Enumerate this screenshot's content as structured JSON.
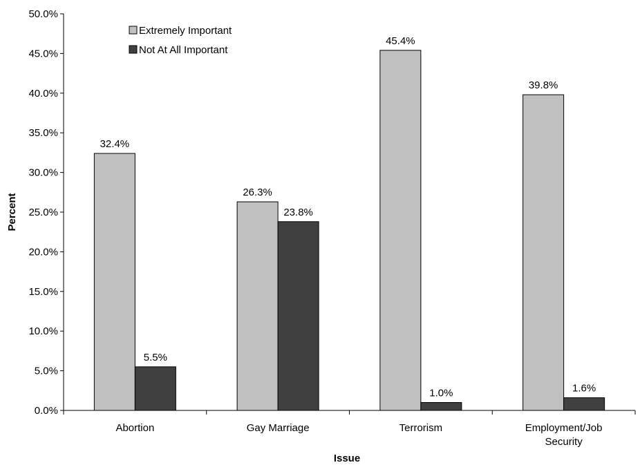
{
  "chart_data": {
    "type": "bar",
    "title": "",
    "xlabel": "Issue",
    "ylabel": "Percent",
    "categories": [
      "Abortion",
      "Gay Marriage",
      "Terrorism",
      "Employment/Job Security"
    ],
    "series": [
      {
        "name": "Extremely Important",
        "values": [
          32.4,
          26.3,
          45.4,
          39.8
        ],
        "color": "#c0c0c0",
        "labels": [
          "32.4%",
          "26.3%",
          "45.4%",
          "39.8%"
        ]
      },
      {
        "name": "Not At All Important",
        "values": [
          5.5,
          23.8,
          1.0,
          1.6
        ],
        "color": "#404040",
        "labels": [
          "5.5%",
          "23.8%",
          "1.0%",
          "1.6%"
        ]
      }
    ],
    "ylim": [
      0,
      50
    ],
    "yticks": [
      0,
      5,
      10,
      15,
      20,
      25,
      30,
      35,
      40,
      45,
      50
    ],
    "ytick_labels": [
      "0.0%",
      "5.0%",
      "10.0%",
      "15.0%",
      "20.0%",
      "25.0%",
      "30.0%",
      "35.0%",
      "40.0%",
      "45.0%",
      "50.0%"
    ],
    "grid": false,
    "legend_position": "top-left"
  }
}
